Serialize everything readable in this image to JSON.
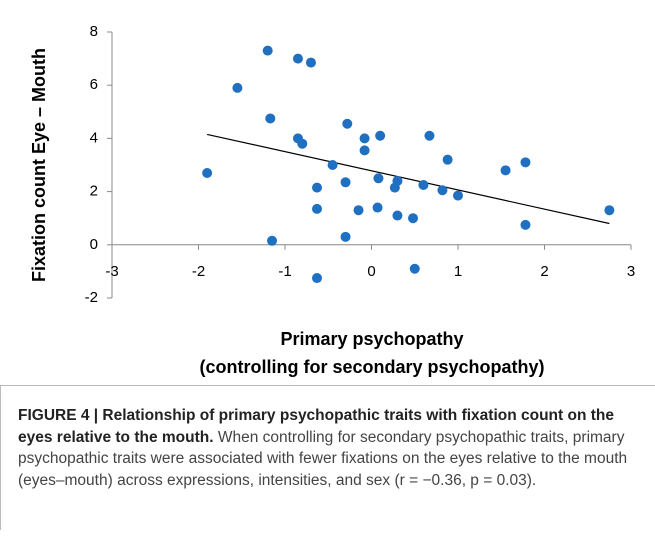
{
  "chart_data": {
    "type": "scatter",
    "ylabel": "Fixation count Eye – Mouth",
    "xlabel": [
      "Primary psychopathy",
      "(controlling for secondary psychopathy)"
    ],
    "color": "#1f70c1",
    "x": [
      -1.9,
      -1.55,
      -1.2,
      -1.17,
      -1.15,
      -0.85,
      -0.85,
      -0.8,
      -0.7,
      -0.63,
      -0.63,
      -0.63,
      -0.28,
      -0.3,
      -0.3,
      -0.45,
      -0.15,
      -0.08,
      -0.08,
      0.1,
      0.07,
      0.08,
      0.27,
      0.3,
      0.3,
      0.48,
      0.5,
      0.6,
      0.67,
      0.82,
      0.88,
      1.0,
      1.55,
      1.78,
      1.78,
      2.75
    ],
    "values": [
      2.7,
      5.9,
      7.3,
      4.75,
      0.15,
      7.0,
      4.0,
      3.8,
      6.85,
      2.15,
      1.35,
      -1.25,
      4.55,
      2.35,
      0.3,
      3.0,
      1.3,
      4.0,
      3.55,
      4.1,
      1.4,
      2.5,
      2.15,
      2.4,
      1.1,
      1.0,
      -0.9,
      2.25,
      4.1,
      2.05,
      3.2,
      1.85,
      2.8,
      3.1,
      0.75,
      1.3
    ],
    "trendline": {
      "x": [
        -1.9,
        2.75
      ],
      "y": [
        4.15,
        0.8
      ]
    },
    "xlim": [
      -3,
      3
    ],
    "xticks": [
      -3,
      -2,
      -1,
      0,
      1,
      2,
      3
    ],
    "ylim": [
      -2,
      8
    ],
    "yticks": [
      -2,
      0,
      2,
      4,
      6,
      8
    ]
  },
  "caption": {
    "title": "FIGURE 4 | Relationship of primary psychopathic traits with fixation count on the eyes relative to the mouth.",
    "text": " When controlling for secondary psychopathic traits, primary psychopathic traits were associated with fewer fixations on the eyes relative to the mouth (eyes–mouth) across expressions, intensities, and sex (r = −0.36, p = 0.03)."
  }
}
